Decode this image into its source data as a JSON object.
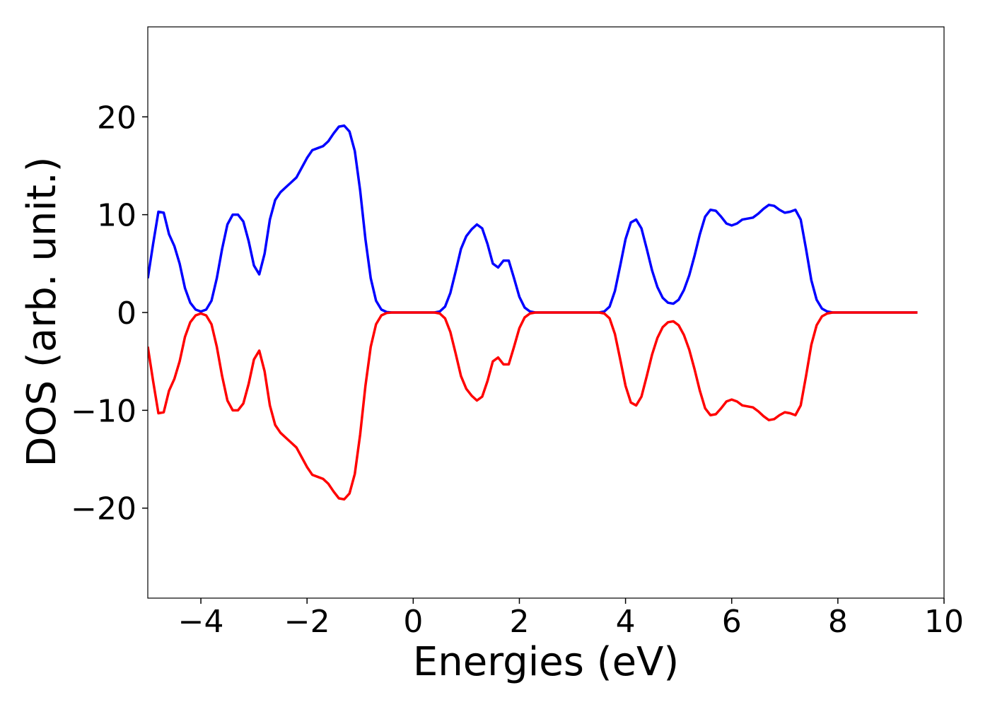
{
  "chart_data": {
    "type": "line",
    "x_label": "Energies (eV)",
    "y_label": "DOS (arb. unit.)",
    "xlim": [
      -5,
      10
    ],
    "ylim": [
      -29.2,
      29.2
    ],
    "xticks": [
      {
        "value": -4,
        "label": "−4"
      },
      {
        "value": -2,
        "label": "−2"
      },
      0,
      2,
      4,
      6,
      8,
      10
    ],
    "yticks": [
      {
        "value": -20,
        "label": "−20"
      },
      {
        "value": -10,
        "label": "−10"
      },
      0,
      10,
      20
    ],
    "grid": false,
    "x": [
      -5.0,
      -4.9,
      -4.8,
      -4.7,
      -4.6,
      -4.5,
      -4.4,
      -4.3,
      -4.2,
      -4.1,
      -4.0,
      -3.9,
      -3.8,
      -3.7,
      -3.6,
      -3.5,
      -3.4,
      -3.3,
      -3.2,
      -3.1,
      -3.0,
      -2.9,
      -2.8,
      -2.7,
      -2.6,
      -2.5,
      -2.4,
      -2.3,
      -2.2,
      -2.1,
      -2.0,
      -1.9,
      -1.8,
      -1.7,
      -1.6,
      -1.5,
      -1.4,
      -1.3,
      -1.2,
      -1.1,
      -1.0,
      -0.9,
      -0.8,
      -0.7,
      -0.6,
      -0.5,
      -0.4,
      -0.3,
      -0.2,
      -0.1,
      0.0,
      0.1,
      0.2,
      0.3,
      0.4,
      0.5,
      0.6,
      0.7,
      0.8,
      0.9,
      1.0,
      1.1,
      1.2,
      1.3,
      1.4,
      1.5,
      1.6,
      1.7,
      1.8,
      1.9,
      2.0,
      2.1,
      2.2,
      2.3,
      2.4,
      2.5,
      2.6,
      2.7,
      2.8,
      2.9,
      3.0,
      3.1,
      3.2,
      3.3,
      3.4,
      3.5,
      3.6,
      3.7,
      3.8,
      3.9,
      4.0,
      4.1,
      4.2,
      4.3,
      4.4,
      4.5,
      4.6,
      4.7,
      4.8,
      4.9,
      5.0,
      5.1,
      5.2,
      5.3,
      5.4,
      5.5,
      5.6,
      5.7,
      5.8,
      5.9,
      6.0,
      6.1,
      6.2,
      6.3,
      6.4,
      6.5,
      6.6,
      6.7,
      6.8,
      6.9,
      7.0,
      7.1,
      7.2,
      7.3,
      7.4,
      7.5,
      7.6,
      7.7,
      7.8,
      7.9,
      8.0,
      8.1,
      8.2,
      8.3,
      8.4,
      8.5,
      8.6,
      8.7,
      8.8,
      8.9,
      9.0,
      9.1,
      9.2,
      9.3,
      9.4,
      9.5
    ],
    "series": [
      {
        "color": "#0000ff",
        "values": [
          3.5,
          7,
          10.3,
          10.2,
          8,
          6.8,
          5,
          2.5,
          1,
          0.3,
          0.1,
          0.3,
          1.2,
          3.5,
          6.5,
          9,
          10,
          10,
          9.3,
          7.3,
          4.8,
          3.9,
          6,
          9.5,
          11.5,
          12.3,
          12.8,
          13.3,
          13.8,
          14.8,
          15.8,
          16.6,
          16.8,
          17,
          17.5,
          18.3,
          19,
          19.1,
          18.5,
          16.5,
          12.5,
          7.5,
          3.5,
          1.2,
          0.3,
          0.05,
          0,
          0,
          0,
          0,
          0,
          0,
          0,
          0,
          0,
          0.1,
          0.6,
          2,
          4.2,
          6.5,
          7.8,
          8.5,
          9,
          8.6,
          7,
          5,
          4.6,
          5.3,
          5.3,
          3.5,
          1.6,
          0.5,
          0.1,
          0,
          0,
          0,
          0,
          0,
          0,
          0,
          0,
          0,
          0,
          0,
          0,
          0,
          0.1,
          0.6,
          2.2,
          4.8,
          7.5,
          9.2,
          9.5,
          8.6,
          6.5,
          4.3,
          2.6,
          1.5,
          1,
          0.9,
          1.3,
          2.3,
          3.8,
          5.8,
          8,
          9.8,
          10.5,
          10.4,
          9.8,
          9.1,
          8.9,
          9.1,
          9.5,
          9.6,
          9.7,
          10.1,
          10.6,
          11,
          10.9,
          10.5,
          10.2,
          10.3,
          10.5,
          9.5,
          6.5,
          3.3,
          1.3,
          0.4,
          0.1,
          0,
          0,
          0,
          0,
          0,
          0,
          0,
          0,
          0,
          0,
          0,
          0,
          0,
          0,
          0,
          0,
          0
        ]
      },
      {
        "color": "#ff0000",
        "values": [
          -3.5,
          -7,
          -10.3,
          -10.2,
          -8,
          -6.8,
          -5,
          -2.5,
          -1,
          -0.3,
          -0.1,
          -0.3,
          -1.2,
          -3.5,
          -6.5,
          -9,
          -10,
          -10,
          -9.3,
          -7.3,
          -4.8,
          -3.9,
          -6,
          -9.5,
          -11.5,
          -12.3,
          -12.8,
          -13.3,
          -13.8,
          -14.8,
          -15.8,
          -16.6,
          -16.8,
          -17,
          -17.5,
          -18.3,
          -19,
          -19.1,
          -18.5,
          -16.5,
          -12.5,
          -7.5,
          -3.5,
          -1.2,
          -0.3,
          -0.05,
          0,
          0,
          0,
          0,
          0,
          0,
          0,
          0,
          0,
          -0.1,
          -0.6,
          -2,
          -4.2,
          -6.5,
          -7.8,
          -8.5,
          -9,
          -8.6,
          -7,
          -5,
          -4.6,
          -5.3,
          -5.3,
          -3.5,
          -1.6,
          -0.5,
          -0.1,
          0,
          0,
          0,
          0,
          0,
          0,
          0,
          0,
          0,
          0,
          0,
          0,
          0,
          -0.1,
          -0.6,
          -2.2,
          -4.8,
          -7.5,
          -9.2,
          -9.5,
          -8.6,
          -6.5,
          -4.3,
          -2.6,
          -1.5,
          -1,
          -0.9,
          -1.3,
          -2.3,
          -3.8,
          -5.8,
          -8,
          -9.8,
          -10.5,
          -10.4,
          -9.8,
          -9.1,
          -8.9,
          -9.1,
          -9.5,
          -9.6,
          -9.7,
          -10.1,
          -10.6,
          -11,
          -10.9,
          -10.5,
          -10.2,
          -10.3,
          -10.5,
          -9.5,
          -6.5,
          -3.3,
          -1.3,
          -0.4,
          -0.1,
          0,
          0,
          0,
          0,
          0,
          0,
          0,
          0,
          0,
          0,
          0,
          0,
          0,
          0,
          0,
          0,
          0
        ]
      }
    ]
  }
}
